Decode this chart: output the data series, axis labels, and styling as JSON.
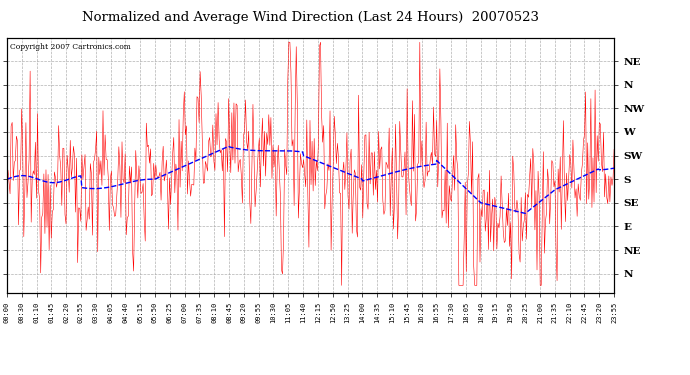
{
  "title": "Normalized and Average Wind Direction (Last 24 Hours)  20070523",
  "copyright": "Copyright 2007 Cartronics.com",
  "background_color": "#ffffff",
  "plot_bg_color": "#ffffff",
  "grid_color": "#aaaaaa",
  "red_color": "#ff0000",
  "blue_color": "#0000ff",
  "ytick_labels": [
    "NE",
    "N",
    "NW",
    "W",
    "SW",
    "S",
    "SE",
    "E",
    "NE",
    "N"
  ],
  "ytick_values": [
    10,
    9,
    8,
    7,
    6,
    5,
    4,
    3,
    2,
    1
  ],
  "ylim": [
    0.2,
    11.0
  ],
  "xtick_labels": [
    "00:00",
    "00:30",
    "01:10",
    "01:45",
    "02:20",
    "02:55",
    "03:30",
    "04:05",
    "04:40",
    "05:15",
    "05:50",
    "06:25",
    "07:00",
    "07:35",
    "08:10",
    "08:45",
    "09:20",
    "09:55",
    "10:30",
    "11:05",
    "11:40",
    "12:15",
    "12:50",
    "13:25",
    "14:00",
    "14:35",
    "15:10",
    "15:45",
    "16:20",
    "16:55",
    "17:30",
    "18:05",
    "18:40",
    "19:15",
    "19:50",
    "20:25",
    "21:00",
    "21:35",
    "22:10",
    "22:45",
    "23:20",
    "23:55"
  ]
}
